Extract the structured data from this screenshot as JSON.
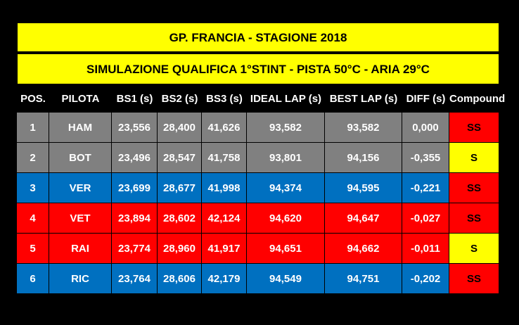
{
  "title": "GP. FRANCIA - STAGIONE 2018",
  "subtitle": "SIMULAZIONE QUALIFICA 1°STINT - PISTA 50°C  - ARIA 29°C",
  "columns": [
    "POS.",
    "PILOTA",
    "BS1 (s)",
    "BS2 (s)",
    "BS3 (s)",
    "IDEAL LAP (s)",
    "BEST LAP (s)",
    "DIFF (s)",
    "Compound"
  ],
  "colors": {
    "banner": "#ffff00",
    "mercedes_gray": "#808080",
    "redbull_blue": "#0070c0",
    "ferrari_red": "#ff0000",
    "compound_ss": "#ff0000",
    "compound_s": "#ffff00"
  },
  "rows": [
    {
      "pos": "1",
      "driver": "HAM",
      "bs1": "23,556",
      "bs2": "28,400",
      "bs3": "41,626",
      "ideal": "93,582",
      "best": "93,582",
      "diff": "0,000",
      "compound": "SS",
      "row_color": "#808080",
      "compound_color": "#ff0000"
    },
    {
      "pos": "2",
      "driver": "BOT",
      "bs1": "23,496",
      "bs2": "28,547",
      "bs3": "41,758",
      "ideal": "93,801",
      "best": "94,156",
      "diff": "-0,355",
      "compound": "S",
      "row_color": "#808080",
      "compound_color": "#ffff00"
    },
    {
      "pos": "3",
      "driver": "VER",
      "bs1": "23,699",
      "bs2": "28,677",
      "bs3": "41,998",
      "ideal": "94,374",
      "best": "94,595",
      "diff": "-0,221",
      "compound": "SS",
      "row_color": "#0070c0",
      "compound_color": "#ff0000"
    },
    {
      "pos": "4",
      "driver": "VET",
      "bs1": "23,894",
      "bs2": "28,602",
      "bs3": "42,124",
      "ideal": "94,620",
      "best": "94,647",
      "diff": "-0,027",
      "compound": "SS",
      "row_color": "#ff0000",
      "compound_color": "#ff0000"
    },
    {
      "pos": "5",
      "driver": "RAI",
      "bs1": "23,774",
      "bs2": "28,960",
      "bs3": "41,917",
      "ideal": "94,651",
      "best": "94,662",
      "diff": "-0,011",
      "compound": "S",
      "row_color": "#ff0000",
      "compound_color": "#ffff00"
    },
    {
      "pos": "6",
      "driver": "RIC",
      "bs1": "23,764",
      "bs2": "28,606",
      "bs3": "42,179",
      "ideal": "94,549",
      "best": "94,751",
      "diff": "-0,202",
      "compound": "SS",
      "row_color": "#0070c0",
      "compound_color": "#ff0000"
    }
  ]
}
